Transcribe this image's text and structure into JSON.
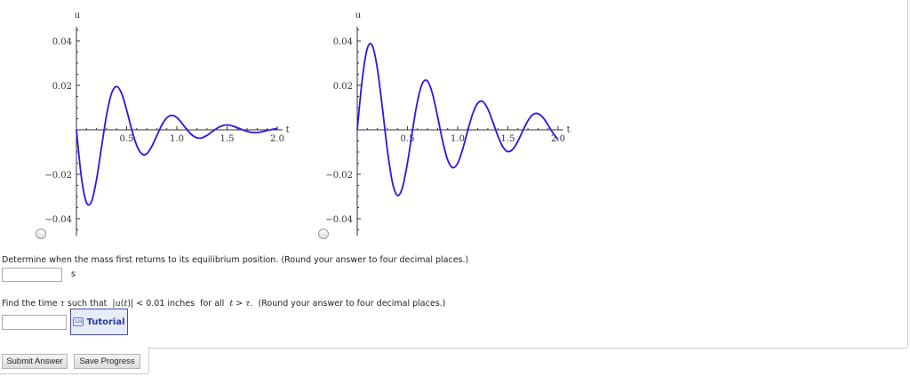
{
  "chart_data": [
    {
      "type": "line",
      "xlabel": "t",
      "ylabel": "u",
      "xlim": [
        0,
        2.05
      ],
      "ylim": [
        -0.045,
        0.047
      ],
      "xticks": [
        "0.5",
        "1.0",
        "1.5",
        "2.0"
      ],
      "yticks": [
        "0.04",
        "0.02",
        "−0.02",
        "−0.04"
      ],
      "color": "#3311ee",
      "x": [
        0,
        0.05,
        0.1,
        0.15,
        0.2,
        0.25,
        0.3,
        0.35,
        0.4,
        0.45,
        0.5,
        0.55,
        0.6,
        0.65,
        0.7,
        0.75,
        0.8,
        0.85,
        0.9,
        0.95,
        1.0,
        1.05,
        1.1,
        1.15,
        1.2,
        1.25,
        1.3,
        1.35,
        1.4,
        1.45,
        1.5,
        1.55,
        1.6,
        1.65,
        1.7,
        1.75,
        1.8,
        1.85,
        1.9,
        1.95,
        2.0
      ],
      "y": [
        0,
        -0.0215,
        -0.0327,
        -0.0323,
        -0.0224,
        -0.0077,
        0.0066,
        0.0164,
        0.0195,
        0.0164,
        0.0089,
        0.0002,
        -0.007,
        -0.0108,
        -0.0108,
        -0.0075,
        -0.0027,
        0.0021,
        0.0054,
        0.0065,
        0.0055,
        0.003,
        0.0001,
        -0.0023,
        -0.0036,
        -0.0036,
        -0.0025,
        -0.0009,
        0.0007,
        0.0018,
        0.0022,
        0.0018,
        0.001,
        0.0001,
        -0.0007,
        -0.0012,
        -0.0012,
        -0.0009,
        -0.0003,
        0.0002,
        0.0006
      ]
    },
    {
      "type": "line",
      "xlabel": "t",
      "ylabel": "u",
      "xlim": [
        0,
        2.05
      ],
      "ylim": [
        -0.045,
        0.047
      ],
      "xticks": [
        "0.5",
        "1.0",
        "1.5",
        "2.0"
      ],
      "yticks": [
        "0.04",
        "0.02",
        "−0.02",
        "−0.04"
      ],
      "color": "#3311ee",
      "x": [
        0,
        0.05,
        0.1,
        0.15,
        0.2,
        0.25,
        0.3,
        0.35,
        0.4,
        0.45,
        0.5,
        0.55,
        0.6,
        0.65,
        0.7,
        0.75,
        0.8,
        0.85,
        0.9,
        0.95,
        1.0,
        1.05,
        1.1,
        1.15,
        1.2,
        1.25,
        1.3,
        1.35,
        1.4,
        1.45,
        1.5,
        1.55,
        1.6,
        1.65,
        1.7,
        1.75,
        1.8,
        1.85,
        1.9,
        1.95,
        2.0
      ],
      "y": [
        0,
        0.0228,
        0.0366,
        0.0379,
        0.0276,
        0.01,
        -0.0091,
        -0.0236,
        -0.0295,
        -0.026,
        -0.0149,
        -0.0003,
        0.0129,
        0.021,
        0.0219,
        0.0161,
        0.006,
        -0.005,
        -0.0135,
        -0.017,
        -0.0151,
        -0.0087,
        -0.0004,
        0.0073,
        0.012,
        0.0127,
        0.0094,
        0.0036,
        -0.0027,
        -0.0077,
        -0.0098,
        -0.0087,
        -0.0051,
        -0.0003,
        0.0041,
        0.0069,
        0.0073,
        0.0055,
        0.0022,
        -0.0015,
        -0.0044
      ]
    }
  ],
  "question1": {
    "text": "Determine when the mass first returns to its equilibrium position. (Round your answer to four decimal places.)",
    "value": "",
    "unit": "s"
  },
  "question2": {
    "prefix": "Find the time ",
    "tau": "τ",
    "mid1": " such that  |",
    "u": "u",
    "paren_open": "(",
    "t": "t",
    "mid2": ")| < 0.01 inches  for all  ",
    "t2": "t",
    "mid3": " > ",
    "tau2": "τ",
    "suffix": ".  (Round your answer to four decimal places.)",
    "value": "",
    "tutorial_label": "Tutorial",
    "tutorial_icon_text": "123"
  },
  "buttons": {
    "submit": "Submit Answer",
    "save": "Save Progress"
  }
}
